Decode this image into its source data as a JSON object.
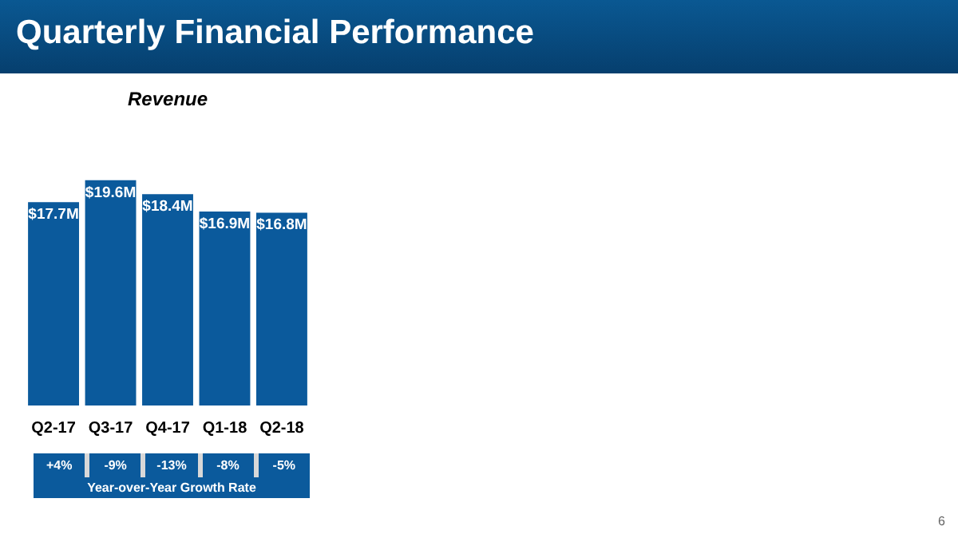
{
  "chart_data": {
    "type": "bar",
    "title": "Quarterly Financial Performance",
    "subtitle": "Revenue",
    "categories": [
      "Q2-17",
      "Q3-17",
      "Q4-17",
      "Q1-18",
      "Q2-18"
    ],
    "values": [
      17.7,
      19.6,
      18.4,
      16.9,
      16.8
    ],
    "value_labels": [
      "$17.7M",
      "$19.6M",
      "$18.4M",
      "$16.9M",
      "$16.8M"
    ],
    "color": "#0b5a9c",
    "grid": false,
    "legend": false,
    "annotations": [
      "+4%",
      "-9%",
      "-13%",
      "-8%",
      "-5%",
      "Year-over-Year Growth Rate",
      "6"
    ]
  }
}
